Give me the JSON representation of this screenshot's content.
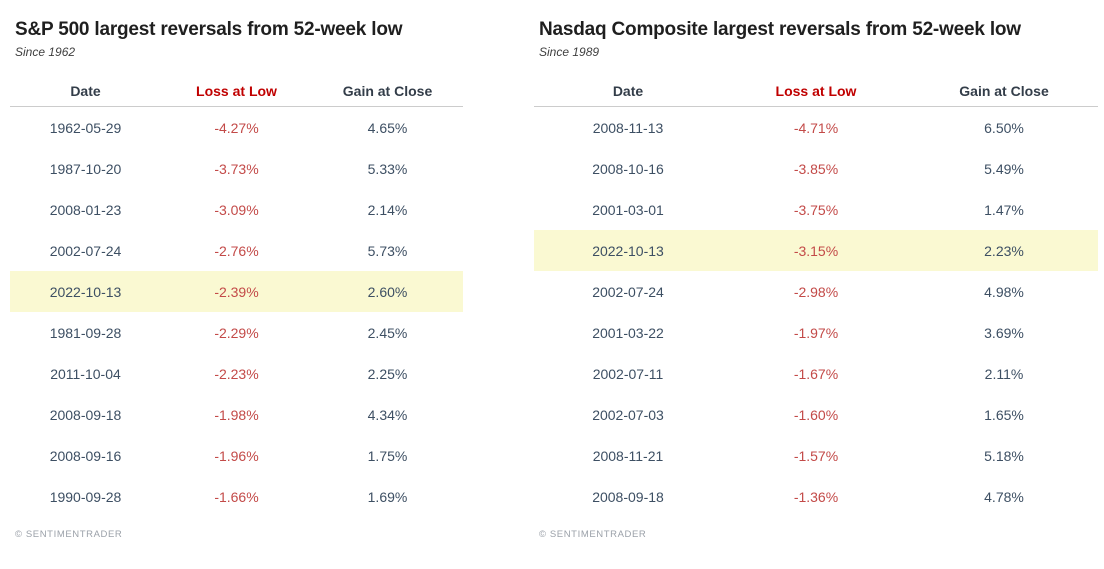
{
  "colors": {
    "highlight": "#FAF9D2",
    "loss_header": "#C00000",
    "loss_value": "#C34A48",
    "value_text": "#3D4F63",
    "header_text": "#333D49"
  },
  "footer": {
    "copyright": "© SENTIMENTRADER"
  },
  "chart_data": [
    {
      "type": "table",
      "title": "S&P 500 largest reversals from 52-week low",
      "subtitle": "Since 1962",
      "columns": [
        "Date",
        "Loss at Low",
        "Gain at Close"
      ],
      "highlighted_date": "2022-10-13",
      "rows": [
        {
          "date": "1962-05-29",
          "loss_at_low": "-4.27%",
          "gain_at_close": "4.65%",
          "highlight": false
        },
        {
          "date": "1987-10-20",
          "loss_at_low": "-3.73%",
          "gain_at_close": "5.33%",
          "highlight": false
        },
        {
          "date": "2008-01-23",
          "loss_at_low": "-3.09%",
          "gain_at_close": "2.14%",
          "highlight": false
        },
        {
          "date": "2002-07-24",
          "loss_at_low": "-2.76%",
          "gain_at_close": "5.73%",
          "highlight": false
        },
        {
          "date": "2022-10-13",
          "loss_at_low": "-2.39%",
          "gain_at_close": "2.60%",
          "highlight": true
        },
        {
          "date": "1981-09-28",
          "loss_at_low": "-2.29%",
          "gain_at_close": "2.45%",
          "highlight": false
        },
        {
          "date": "2011-10-04",
          "loss_at_low": "-2.23%",
          "gain_at_close": "2.25%",
          "highlight": false
        },
        {
          "date": "2008-09-18",
          "loss_at_low": "-1.98%",
          "gain_at_close": "4.34%",
          "highlight": false
        },
        {
          "date": "2008-09-16",
          "loss_at_low": "-1.96%",
          "gain_at_close": "1.75%",
          "highlight": false
        },
        {
          "date": "1990-09-28",
          "loss_at_low": "-1.66%",
          "gain_at_close": "1.69%",
          "highlight": false
        }
      ]
    },
    {
      "type": "table",
      "title": "Nasdaq Composite largest reversals from 52-week low",
      "subtitle": "Since 1989",
      "columns": [
        "Date",
        "Loss at Low",
        "Gain at Close"
      ],
      "highlighted_date": "2022-10-13",
      "rows": [
        {
          "date": "2008-11-13",
          "loss_at_low": "-4.71%",
          "gain_at_close": "6.50%",
          "highlight": false
        },
        {
          "date": "2008-10-16",
          "loss_at_low": "-3.85%",
          "gain_at_close": "5.49%",
          "highlight": false
        },
        {
          "date": "2001-03-01",
          "loss_at_low": "-3.75%",
          "gain_at_close": "1.47%",
          "highlight": false
        },
        {
          "date": "2022-10-13",
          "loss_at_low": "-3.15%",
          "gain_at_close": "2.23%",
          "highlight": true
        },
        {
          "date": "2002-07-24",
          "loss_at_low": "-2.98%",
          "gain_at_close": "4.98%",
          "highlight": false
        },
        {
          "date": "2001-03-22",
          "loss_at_low": "-1.97%",
          "gain_at_close": "3.69%",
          "highlight": false
        },
        {
          "date": "2002-07-11",
          "loss_at_low": "-1.67%",
          "gain_at_close": "2.11%",
          "highlight": false
        },
        {
          "date": "2002-07-03",
          "loss_at_low": "-1.60%",
          "gain_at_close": "1.65%",
          "highlight": false
        },
        {
          "date": "2008-11-21",
          "loss_at_low": "-1.57%",
          "gain_at_close": "5.18%",
          "highlight": false
        },
        {
          "date": "2008-09-18",
          "loss_at_low": "-1.36%",
          "gain_at_close": "4.78%",
          "highlight": false
        }
      ]
    }
  ]
}
